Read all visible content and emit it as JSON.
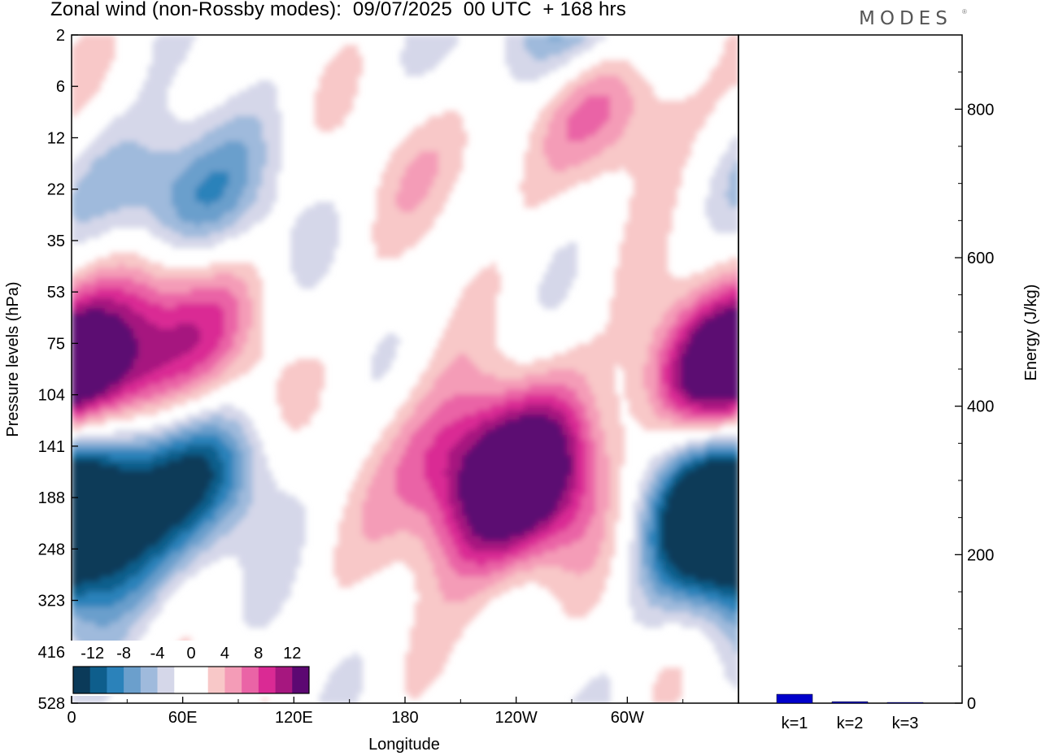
{
  "title": "Zonal wind (non-Rossby modes):  09/07/2025  00 UTC  + 168 hrs",
  "brand": "MODES",
  "brand_mark": "®",
  "colors": {
    "neg": [
      "#0b3a59",
      "#0e5e8c",
      "#2b82ba",
      "#6b9fcc",
      "#9fbadc",
      "#d5d7e9"
    ],
    "zero": "#ffffff",
    "pos": [
      "#f8c8c8",
      "#f49cb7",
      "#ea64a6",
      "#da2a94",
      "#a6177f",
      "#5c0872"
    ],
    "energy_bar": "#0000cc"
  },
  "chart_data": [
    {
      "type": "heatmap",
      "title": "Zonal wind (non-Rossby modes):  09/07/2025  00 UTC  + 168 hrs",
      "xlabel": "Longitude",
      "ylabel": "Pressure levels (hPa)",
      "x_ticks": [
        "0",
        "60E",
        "120E",
        "180",
        "120W",
        "60W"
      ],
      "x_tick_positions_deg": [
        0,
        60,
        120,
        180,
        240,
        300
      ],
      "xlim": [
        0,
        360
      ],
      "y_ticks": [
        "2",
        "6",
        "12",
        "22",
        "35",
        "53",
        "75",
        "104",
        "141",
        "188",
        "248",
        "323",
        "416",
        "528"
      ],
      "colorbar": {
        "labels": [
          "-12",
          "-8",
          "-4",
          "0",
          "4",
          "8",
          "12"
        ],
        "levels": [
          -14,
          -12,
          -10,
          -8,
          -6,
          -4,
          -2,
          2,
          4,
          6,
          8,
          10,
          12,
          14
        ]
      },
      "features": [
        {
          "level_index": 8.2,
          "lon": 62,
          "value": -15
        },
        {
          "level_index": 9.5,
          "lon": 4,
          "value": -11
        },
        {
          "level_index": 3.1,
          "lon": 56,
          "value": -9
        },
        {
          "level_index": 0.05,
          "lon": 272,
          "value": -11
        },
        {
          "level_index": 0.9,
          "lon": 290,
          "value": 10
        },
        {
          "level_index": 6.6,
          "lon": 6,
          "value": 10
        },
        {
          "level_index": 5.4,
          "lon": 48,
          "value": 8
        },
        {
          "level_index": 7.6,
          "lon": 68,
          "value": 7
        },
        {
          "level_index": 8.3,
          "lon": 225,
          "value": 10
        },
        {
          "level_index": 9.5,
          "lon": 230,
          "value": 8
        },
        {
          "level_index": 8.3,
          "lon": 265,
          "value": 6
        },
        {
          "level_index": 2.5,
          "lon": 212,
          "value": 3
        },
        {
          "level_index": 6.8,
          "lon": 352,
          "value": 8
        },
        {
          "level_index": 8.5,
          "lon": 349,
          "value": -8
        },
        {
          "level_index": 10.1,
          "lon": 355,
          "value": -8
        }
      ]
    },
    {
      "type": "bar",
      "categories": [
        "k=1",
        "k=2",
        "k=3"
      ],
      "values": [
        12,
        2,
        1
      ],
      "ylabel": "Energy (J/kg)",
      "ylim": [
        0,
        900
      ],
      "y_ticks": [
        "0",
        "200",
        "400",
        "600",
        "800"
      ],
      "y_tick_values": [
        0,
        200,
        400,
        600,
        800
      ]
    }
  ]
}
